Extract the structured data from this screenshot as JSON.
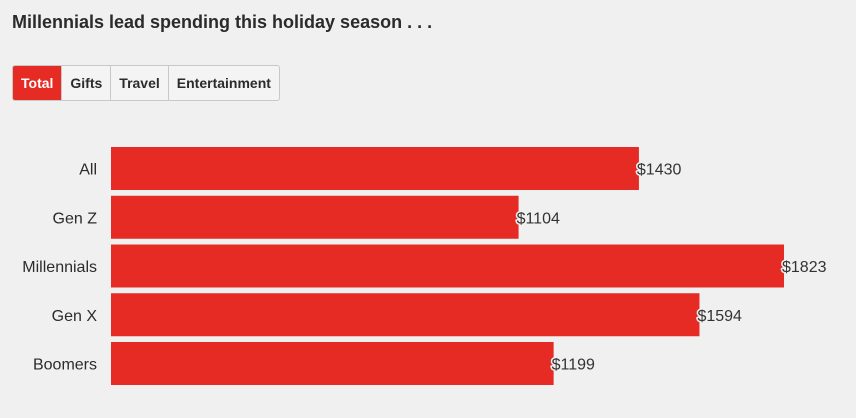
{
  "title": "Millennials lead spending this holiday season . . .",
  "tabs": [
    {
      "label": "Total",
      "active": true
    },
    {
      "label": "Gifts",
      "active": false
    },
    {
      "label": "Travel",
      "active": false
    },
    {
      "label": "Entertainment",
      "active": false
    }
  ],
  "colors": {
    "bar": "#e52b24",
    "background": "#f0f0f0",
    "active_tab": "#e52b24"
  },
  "chart_data": {
    "type": "bar",
    "orientation": "horizontal",
    "categories": [
      "All",
      "Gen Z",
      "Millennials",
      "Gen X",
      "Boomers"
    ],
    "values": [
      1430,
      1104,
      1823,
      1594,
      1199
    ],
    "value_labels": [
      "$1430",
      "$1104",
      "$1823",
      "$1594",
      "$1199"
    ],
    "xlim": [
      0,
      1823
    ],
    "grid": false
  }
}
